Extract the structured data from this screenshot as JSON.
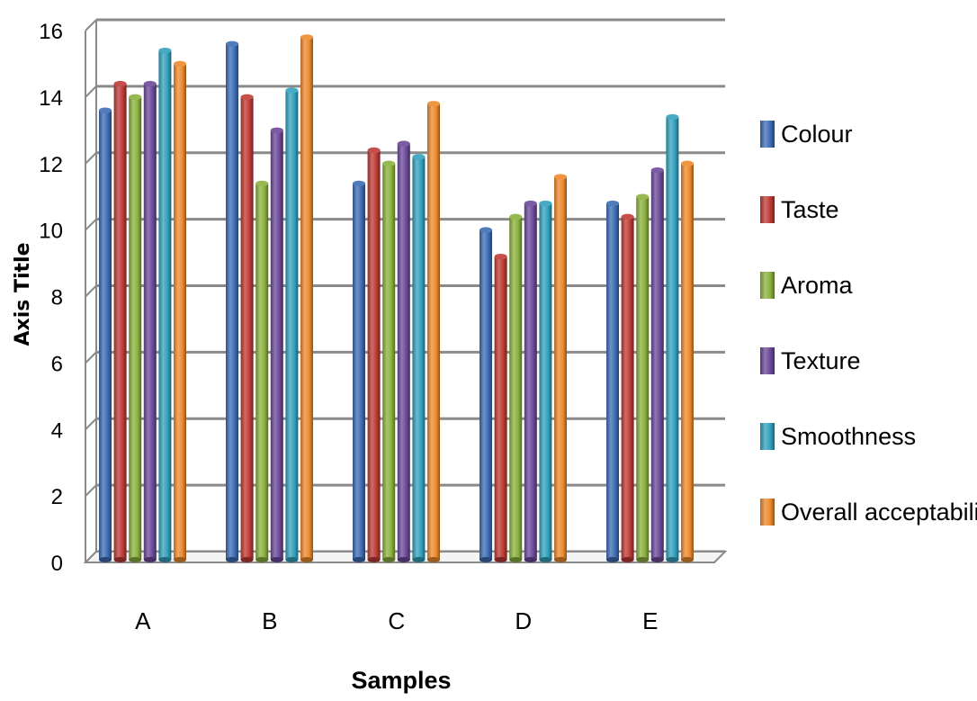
{
  "chart_data": {
    "type": "bar",
    "title": "",
    "xlabel": "Samples",
    "ylabel": "Axis Title",
    "ylim": [
      0,
      16
    ],
    "yticks": [
      0,
      2,
      4,
      6,
      8,
      10,
      12,
      14,
      16
    ],
    "categories": [
      "A",
      "B",
      "C",
      "D",
      "E"
    ],
    "series": [
      {
        "name": "Colour",
        "color": "#3E6DB5",
        "values": [
          13.6,
          15.6,
          11.4,
          10.0,
          10.8
        ]
      },
      {
        "name": "Taste",
        "color": "#BE3B36",
        "values": [
          14.4,
          14.0,
          12.4,
          9.2,
          10.4
        ]
      },
      {
        "name": "Aroma",
        "color": "#8CB13F",
        "values": [
          14.0,
          11.4,
          12.0,
          10.4,
          11.0
        ]
      },
      {
        "name": "Texture",
        "color": "#6C4A9A",
        "values": [
          14.4,
          13.0,
          12.6,
          10.8,
          11.8
        ]
      },
      {
        "name": "Smoothness",
        "color": "#33A2BE",
        "values": [
          15.4,
          14.2,
          12.2,
          10.8,
          13.4
        ]
      },
      {
        "name": "Overall acceptability",
        "color": "#EE8A2E",
        "values": [
          15.0,
          15.8,
          13.8,
          11.6,
          12.0
        ]
      }
    ],
    "grid": true,
    "legend": "right"
  }
}
